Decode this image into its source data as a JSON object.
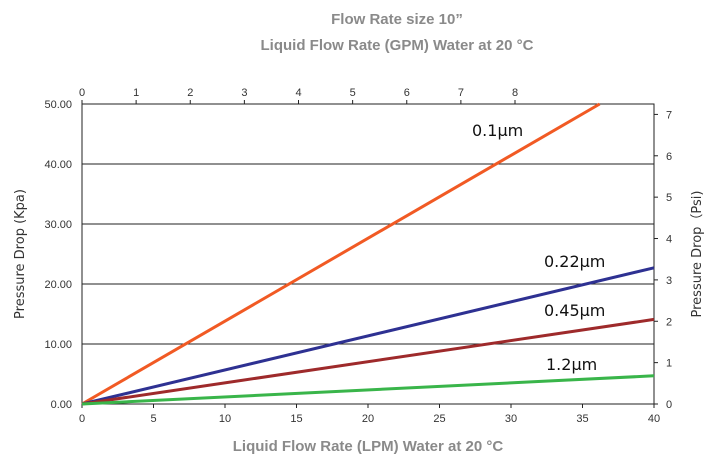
{
  "chart_data": {
    "type": "line",
    "title": "Flow Rate size 10”",
    "subtitle": "Liquid Flow Rate (GPM) Water at 20 °C",
    "xlabel": "Liquid Flow Rate (LPM) Water at 20 °C",
    "ylabel": "Pressure Drop (Kpa)",
    "ylabel_right": "Pressure Drop（Psi)",
    "xlim": [
      0,
      40
    ],
    "ylim": [
      0,
      50
    ],
    "x_ticks": [
      "0",
      "5",
      "10",
      "15",
      "20",
      "25",
      "30",
      "35",
      "40"
    ],
    "y_ticks": [
      "0.00",
      "10.00",
      "20.00",
      "30.00",
      "40.00",
      "50.00"
    ],
    "x_top_ticks": [
      "0",
      "1",
      "2",
      "3",
      "4",
      "5",
      "6",
      "7",
      "8"
    ],
    "y_right_ticks": [
      "0",
      "1",
      "2",
      "3",
      "4",
      "5",
      "6",
      "7"
    ],
    "series": [
      {
        "name": "0.1µm",
        "color": "#f15a24",
        "x": [
          0,
          36.2
        ],
        "y": [
          0,
          50
        ]
      },
      {
        "name": "0.22µm",
        "color": "#2e3192",
        "x": [
          0,
          40
        ],
        "y": [
          0,
          22.7
        ]
      },
      {
        "name": "0.45µm",
        "color": "#9e2a2b",
        "x": [
          0,
          40
        ],
        "y": [
          0,
          14.1
        ]
      },
      {
        "name": "1.2µm",
        "color": "#39b54a",
        "x": [
          0,
          40
        ],
        "y": [
          0,
          4.7
        ]
      }
    ],
    "grid": true,
    "legend": "inline labels"
  }
}
